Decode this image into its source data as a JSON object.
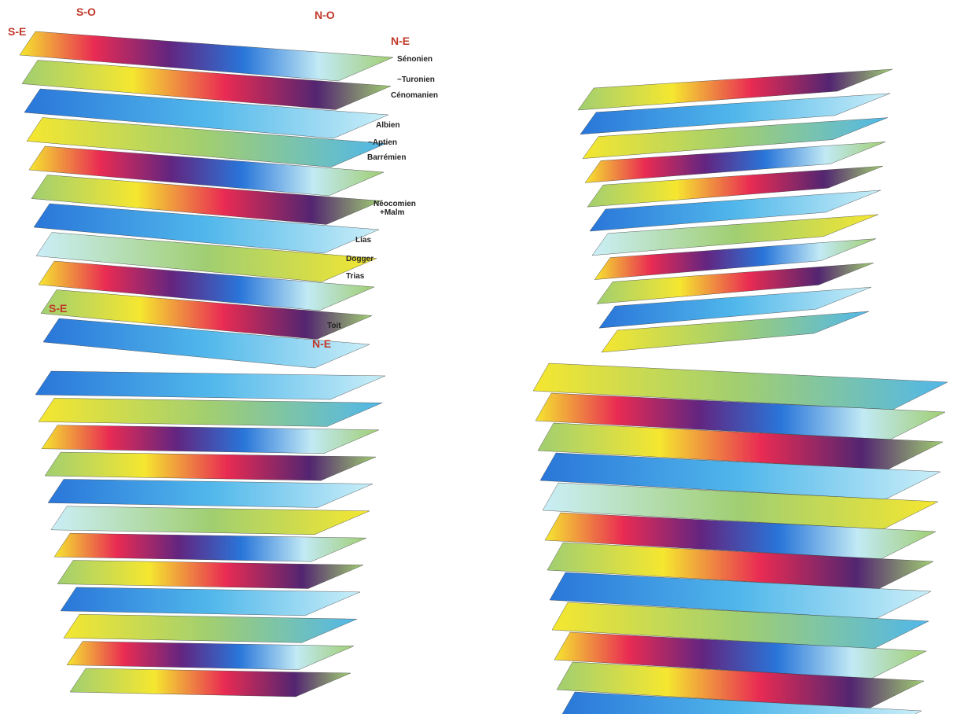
{
  "top_left": {
    "directions": [
      "S-E",
      "S-O",
      "N-O",
      "N-E",
      "S-E",
      "N-E"
    ],
    "layers": [
      "Sénonien",
      "~Turonien",
      "Cénomanien",
      "Albien",
      "~Aptien",
      "Barrémien",
      [
        "Néocomien",
        "+Malm"
      ],
      "Lias",
      "Dogger",
      "Trias",
      "Toit"
    ]
  }
}
